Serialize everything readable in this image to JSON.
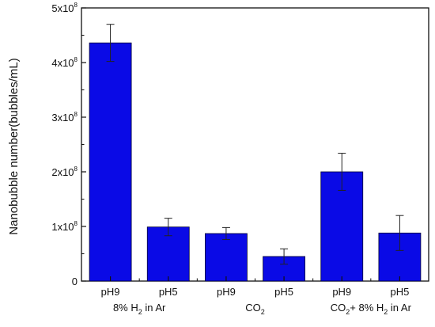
{
  "chart_data": {
    "type": "bar",
    "title": "",
    "xlabel": "",
    "ylabel": "Nanobubble number(bubbles/mL)",
    "y_tick_labels": [
      {
        "value": 0,
        "mantissa": "0",
        "exponent": ""
      },
      {
        "value": 1,
        "mantissa": "1x10",
        "exponent": "8"
      },
      {
        "value": 2,
        "mantissa": "2x10",
        "exponent": "8"
      },
      {
        "value": 3,
        "mantissa": "3x10",
        "exponent": "8"
      },
      {
        "value": 4,
        "mantissa": "4x10",
        "exponent": "8"
      },
      {
        "value": 5,
        "mantissa": "5x10",
        "exponent": "8"
      }
    ],
    "y_unit_multiplier": 100000000,
    "ylim": [
      0,
      5
    ],
    "bar_color": "#0a0ae6",
    "groups": [
      {
        "name_parts": [
          {
            "text": "8% H",
            "style": "normal"
          },
          {
            "text": "2",
            "style": "sub"
          },
          {
            "text": " in Ar",
            "style": "normal"
          }
        ]
      },
      {
        "name_parts": [
          {
            "text": "CO",
            "style": "normal"
          },
          {
            "text": "2",
            "style": "sub"
          }
        ]
      },
      {
        "name_parts": [
          {
            "text": "CO",
            "style": "normal"
          },
          {
            "text": "2",
            "style": "sub"
          },
          {
            "text": "+ 8% H",
            "style": "normal"
          },
          {
            "text": "2",
            "style": "sub"
          },
          {
            "text": " in Ar",
            "style": "normal"
          }
        ]
      }
    ],
    "bars": [
      {
        "category": "pH9",
        "group": 0,
        "value": 4.36,
        "error": 0.34
      },
      {
        "category": "pH5",
        "group": 0,
        "value": 0.99,
        "error": 0.16
      },
      {
        "category": "pH9",
        "group": 1,
        "value": 0.87,
        "error": 0.11
      },
      {
        "category": "pH5",
        "group": 1,
        "value": 0.45,
        "error": 0.14
      },
      {
        "category": "pH9",
        "group": 2,
        "value": 2.0,
        "error": 0.34
      },
      {
        "category": "pH5",
        "group": 2,
        "value": 0.88,
        "error": 0.32
      }
    ]
  }
}
